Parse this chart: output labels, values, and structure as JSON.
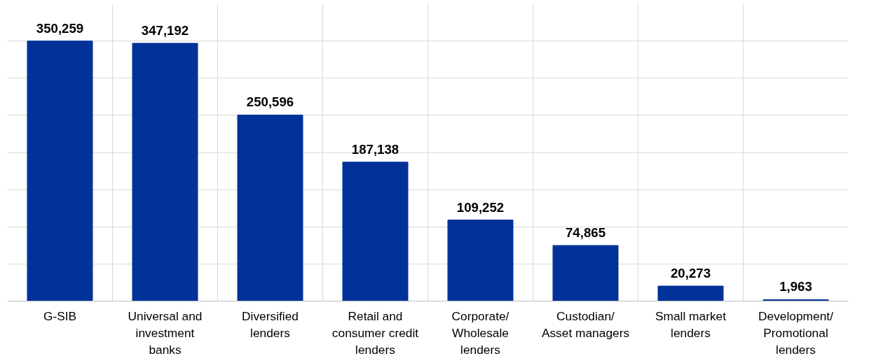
{
  "chart_data": {
    "type": "bar",
    "categories": [
      "G-SIB",
      "Universal and investment banks",
      "Diversified lenders",
      "Retail and consumer credit lenders",
      "Corporate/ Wholesale lenders",
      "Custodian/ Asset managers",
      "Small market lenders",
      "Development/ Promotional lenders"
    ],
    "values": [
      350259,
      347192,
      250596,
      187138,
      109252,
      74865,
      20273,
      1963
    ],
    "value_labels": [
      "350,259",
      "347,192",
      "250,596",
      "187,138",
      "109,252",
      "74,865",
      "20,273",
      "1,963"
    ],
    "color": "#003299",
    "tick_labels": "x",
    "grid": true
  }
}
